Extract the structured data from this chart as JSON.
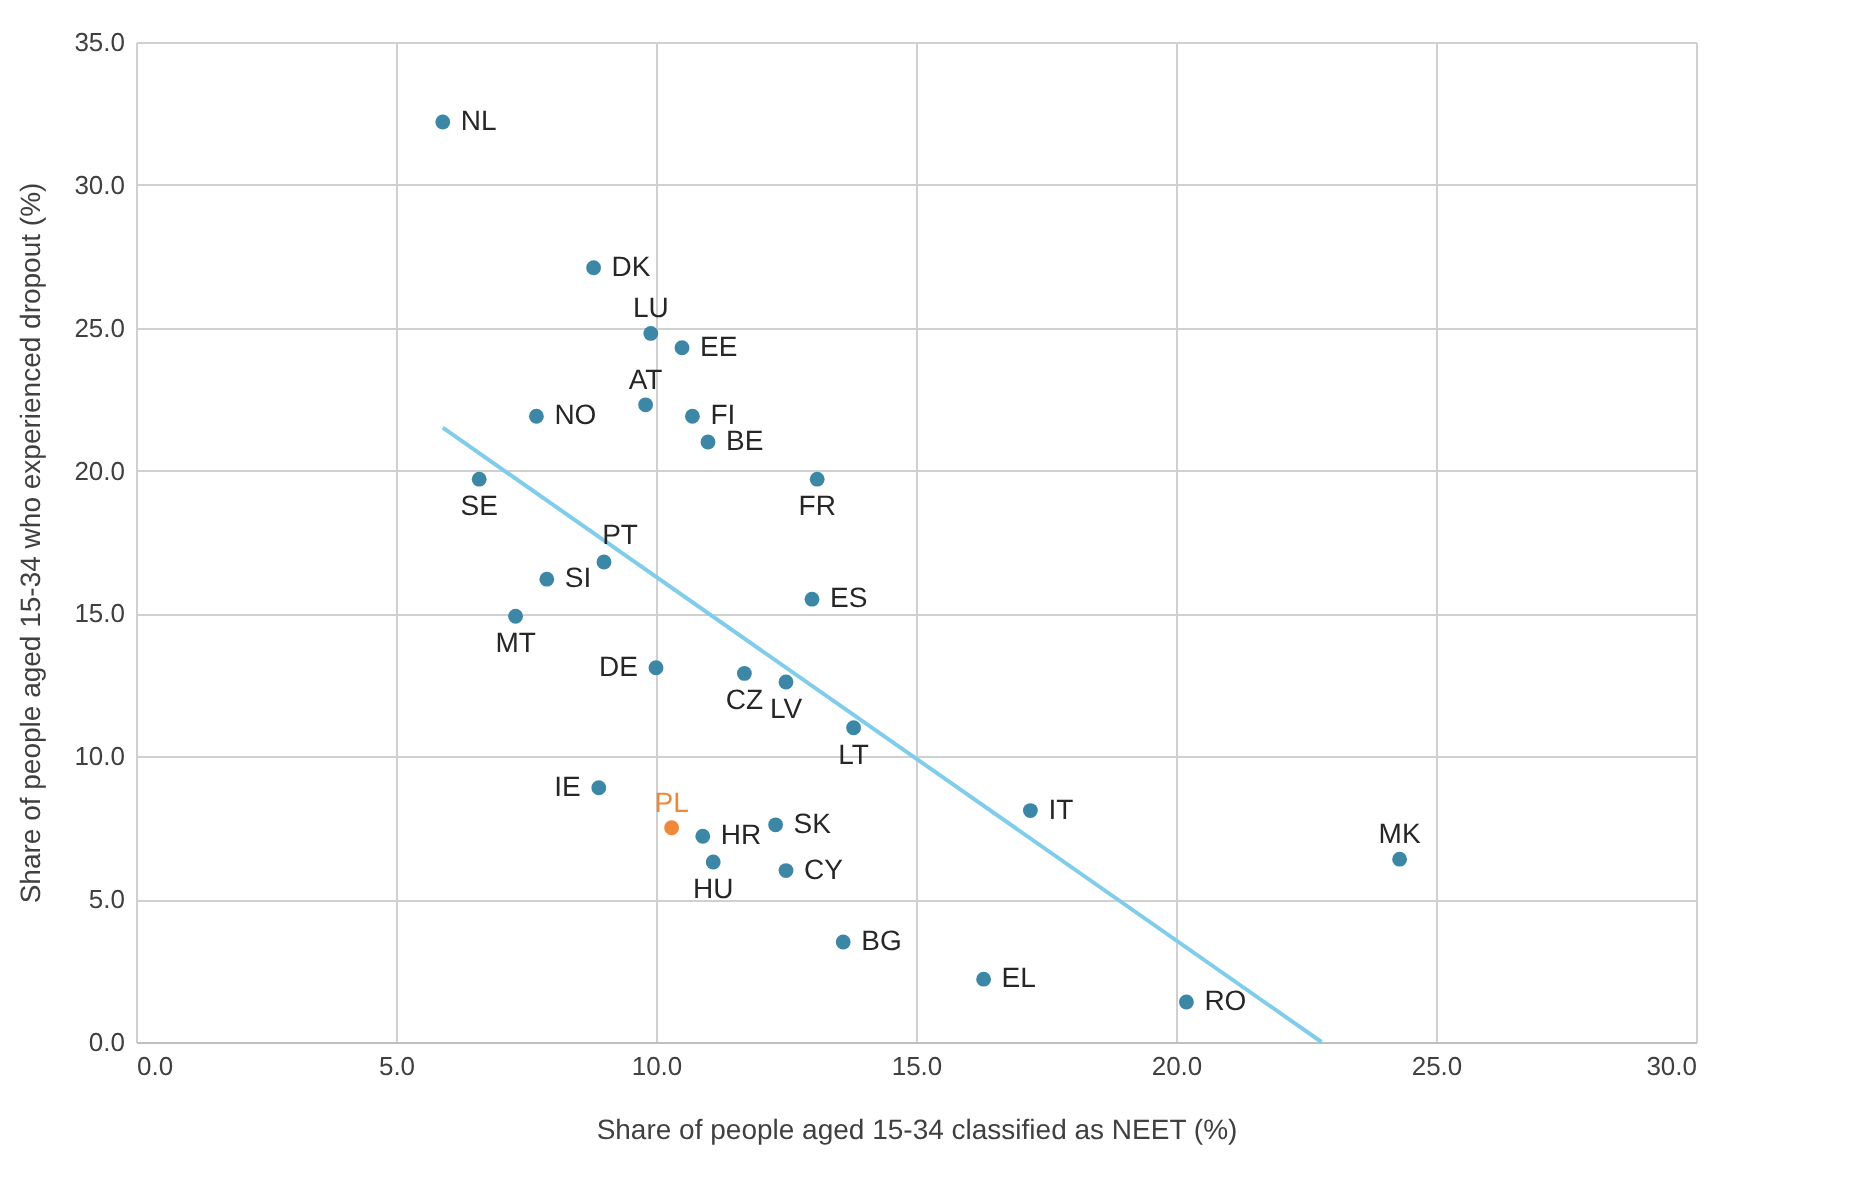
{
  "chart_data": {
    "type": "scatter",
    "xlabel": "Share of people aged 15-34 classified as NEET (%)",
    "ylabel": "Share of people aged 15-34 who experienced dropout (%)",
    "xlim": [
      0,
      30
    ],
    "xticks": [
      {
        "value": 0,
        "label": "0.0"
      },
      {
        "value": 5,
        "label": "5.0"
      },
      {
        "value": 10,
        "label": "10.0"
      },
      {
        "value": 15,
        "label": "15.0"
      },
      {
        "value": 20,
        "label": "20.0"
      },
      {
        "value": 25,
        "label": "25.0"
      },
      {
        "value": 30,
        "label": "30.0"
      }
    ],
    "ylim": [
      0,
      35
    ],
    "yticks": [
      {
        "value": 0,
        "label": "0.0"
      },
      {
        "value": 5,
        "label": "5.0"
      },
      {
        "value": 10,
        "label": "10.0"
      },
      {
        "value": 15,
        "label": "15.0"
      },
      {
        "value": 20,
        "label": "20.0"
      },
      {
        "value": 25,
        "label": "25.0"
      },
      {
        "value": 30,
        "label": "30.0"
      },
      {
        "value": 35,
        "label": "35.0"
      }
    ],
    "grid": true,
    "series": [
      {
        "marker": "circle",
        "x": [
          5.9,
          8.8,
          9.9,
          10.5,
          9.8,
          7.7,
          10.7,
          11.0,
          13.1,
          6.6,
          9.0,
          7.9,
          13.0,
          7.3,
          10.0,
          11.7,
          12.5,
          13.8,
          8.9,
          10.3,
          10.9,
          12.3,
          17.2,
          24.3,
          11.1,
          12.5,
          13.6,
          16.3,
          20.2
        ],
        "values": [
          32.2,
          27.1,
          24.8,
          24.3,
          22.3,
          21.9,
          21.9,
          21.0,
          19.7,
          19.7,
          16.8,
          16.2,
          15.5,
          14.9,
          13.1,
          12.9,
          12.6,
          11.0,
          8.9,
          7.5,
          7.2,
          7.6,
          8.1,
          6.4,
          6.3,
          6.0,
          3.5,
          2.2,
          1.4
        ],
        "colors": [
          "#3b87a5",
          "#3b87a5",
          "#3b87a5",
          "#3b87a5",
          "#3b87a5",
          "#3b87a5",
          "#3b87a5",
          "#3b87a5",
          "#3b87a5",
          "#3b87a5",
          "#3b87a5",
          "#3b87a5",
          "#3b87a5",
          "#3b87a5",
          "#3b87a5",
          "#3b87a5",
          "#3b87a5",
          "#3b87a5",
          "#3b87a5",
          "#f0883a",
          "#3b87a5",
          "#3b87a5",
          "#3b87a5",
          "#3b87a5",
          "#3b87a5",
          "#3b87a5",
          "#3b87a5",
          "#3b87a5",
          "#3b87a5"
        ]
      },
      {
        "type": "line",
        "marker": "none",
        "line_style": "solid",
        "color": "#7fcdeb",
        "x": [
          5.9,
          22.8
        ],
        "values": [
          21.5,
          0.0
        ]
      }
    ],
    "annotations": [
      {
        "text": "NL",
        "x": 5.9,
        "y": 32.2
      },
      {
        "text": "DK",
        "x": 8.8,
        "y": 27.1
      },
      {
        "text": "LU",
        "x": 9.9,
        "y": 24.8
      },
      {
        "text": "EE",
        "x": 10.5,
        "y": 24.3
      },
      {
        "text": "AT",
        "x": 9.8,
        "y": 22.3
      },
      {
        "text": "NO",
        "x": 7.7,
        "y": 21.9
      },
      {
        "text": "FI",
        "x": 10.7,
        "y": 21.9
      },
      {
        "text": "BE",
        "x": 11.0,
        "y": 21.0
      },
      {
        "text": "FR",
        "x": 13.1,
        "y": 19.7
      },
      {
        "text": "SE",
        "x": 6.6,
        "y": 19.7
      },
      {
        "text": "PT",
        "x": 9.0,
        "y": 16.8
      },
      {
        "text": "SI",
        "x": 7.9,
        "y": 16.2
      },
      {
        "text": "ES",
        "x": 13.0,
        "y": 15.5
      },
      {
        "text": "MT",
        "x": 7.3,
        "y": 14.9
      },
      {
        "text": "DE",
        "x": 10.0,
        "y": 13.1
      },
      {
        "text": "CZ",
        "x": 11.7,
        "y": 12.9
      },
      {
        "text": "LV",
        "x": 12.5,
        "y": 12.6
      },
      {
        "text": "LT",
        "x": 13.8,
        "y": 11.0
      },
      {
        "text": "IE",
        "x": 8.9,
        "y": 8.9
      },
      {
        "text": "PL",
        "x": 10.3,
        "y": 7.5
      },
      {
        "text": "HR",
        "x": 10.9,
        "y": 7.2
      },
      {
        "text": "SK",
        "x": 12.3,
        "y": 7.6
      },
      {
        "text": "IT",
        "x": 17.2,
        "y": 8.1
      },
      {
        "text": "MK",
        "x": 24.3,
        "y": 6.4
      },
      {
        "text": "HU",
        "x": 11.1,
        "y": 6.3
      },
      {
        "text": "CY",
        "x": 12.5,
        "y": 6.0
      },
      {
        "text": "BG",
        "x": 13.6,
        "y": 3.5
      },
      {
        "text": "EL",
        "x": 16.3,
        "y": 2.2
      },
      {
        "text": "RO",
        "x": 20.2,
        "y": 1.4
      }
    ]
  }
}
